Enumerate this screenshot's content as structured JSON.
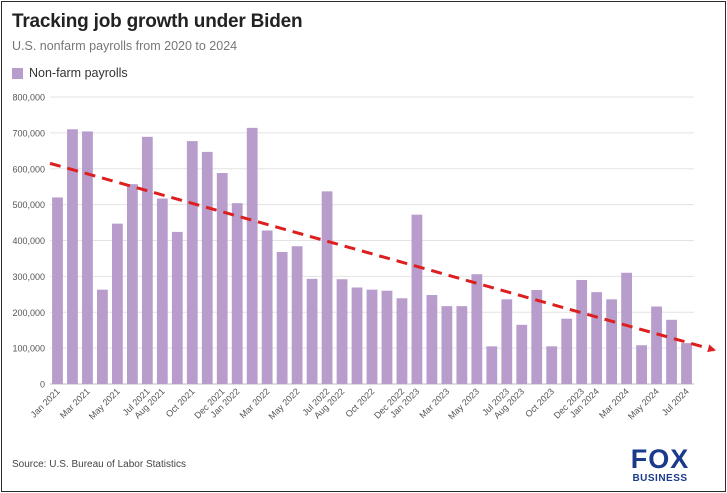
{
  "header": {
    "title": "Tracking job growth under Biden",
    "subtitle": "U.S. nonfarm payrolls from 2020 to 2024"
  },
  "footer": {
    "source": "Source: U.S. Bureau of Labor Statistics"
  },
  "logo": {
    "line1": "FOX",
    "line2": "BUSINESS",
    "color": "#1b3a8c"
  },
  "chart_data": {
    "type": "bar",
    "title": "Tracking job growth under Biden",
    "subtitle": "U.S. nonfarm payrolls from 2020 to 2024",
    "xlabel": "",
    "ylabel": "",
    "ylim": [
      0,
      800000
    ],
    "yticks": [
      0,
      100000,
      200000,
      300000,
      400000,
      500000,
      600000,
      700000,
      800000
    ],
    "ytick_labels": [
      "0",
      "100,000",
      "200,000",
      "300,000",
      "400,000",
      "500,000",
      "600,000",
      "700,000",
      "800,000"
    ],
    "grid": true,
    "legend_position": "top-left",
    "bar_color": "#b79ccc",
    "trend_color": "#dd1f1f",
    "categories": [
      "Jan 2021",
      "Feb 2021",
      "Mar 2021",
      "Apr 2021",
      "May 2021",
      "Jun 2021",
      "Jul 2021",
      "Aug 2021",
      "Sep 2021",
      "Oct 2021",
      "Nov 2021",
      "Dec 2021",
      "Jan 2022",
      "Feb 2022",
      "Mar 2022",
      "Apr 2022",
      "May 2022",
      "Jun 2022",
      "Jul 2022",
      "Aug 2022",
      "Sep 2022",
      "Oct 2022",
      "Nov 2022",
      "Dec 2022",
      "Jan 2023",
      "Feb 2023",
      "Mar 2023",
      "Apr 2023",
      "May 2023",
      "Jun 2023",
      "Jul 2023",
      "Aug 2023",
      "Sep 2023",
      "Oct 2023",
      "Nov 2023",
      "Dec 2023",
      "Jan 2024",
      "Feb 2024",
      "Mar 2024",
      "Apr 2024",
      "May 2024",
      "Jun 2024",
      "Jul 2024"
    ],
    "x_tick_labels": [
      "Jan 2021",
      "Mar 2021",
      "May 2021",
      "Jul 2021",
      "Aug 2021",
      "Oct 2021",
      "Dec 2021",
      "Jan 2022",
      "Mar 2022",
      "May 2022",
      "Jul 2022",
      "Aug 2022",
      "Oct 2022",
      "Dec 2022",
      "Jan 2023",
      "Mar 2023",
      "May 2023",
      "Jul 2023",
      "Aug 2023",
      "Oct 2023",
      "Dec 2023",
      "Jan 2024",
      "Mar 2024",
      "May 2024",
      "Jul 2024"
    ],
    "series": [
      {
        "name": "Non-farm payrolls",
        "values": [
          520000,
          710000,
          704000,
          263000,
          447000,
          557000,
          689000,
          517000,
          424000,
          677000,
          647000,
          588000,
          504000,
          714000,
          428000,
          368000,
          384000,
          293000,
          537000,
          292000,
          269000,
          263000,
          260000,
          239000,
          472000,
          248000,
          217000,
          217000,
          306000,
          105000,
          236000,
          165000,
          262000,
          105000,
          182000,
          290000,
          256000,
          236000,
          310000,
          108000,
          216000,
          179000,
          114000
        ]
      }
    ],
    "trend_line": {
      "style": "dashed",
      "start_value": 615000,
      "end_value": 95000
    }
  }
}
